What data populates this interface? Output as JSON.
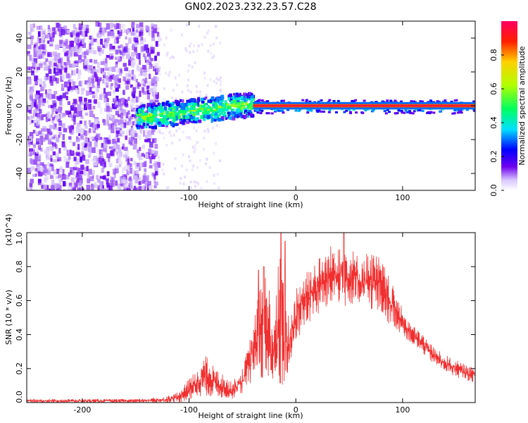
{
  "title": "GN02.2023.232.23.57.C28",
  "chart_data": [
    {
      "type": "heatmap",
      "xlabel": "Height of straight line (km)",
      "ylabel": "Frequency (Hz)",
      "xlim": [
        -252,
        168
      ],
      "ylim": [
        -50,
        50
      ],
      "xticks": [
        -200,
        -100,
        0,
        100
      ],
      "xtick_labels": [
        "-200",
        "-100",
        "0",
        "100"
      ],
      "yticks": [
        -40,
        -20,
        0,
        20,
        40
      ],
      "ytick_labels": [
        "-40",
        "-20",
        "0",
        "20",
        "40"
      ],
      "colorbar": {
        "label": "Normalized spectral amplitude",
        "range": [
          0.0,
          1.0
        ],
        "ticks": [
          0.0,
          0.2,
          0.4,
          0.6,
          0.8
        ],
        "tick_labels": [
          "0.0",
          "0.2",
          "0.4",
          "0.6",
          "0.8"
        ]
      },
      "regions": [
        {
          "x": [
            -252,
            -130
          ],
          "freq": [
            -50,
            50
          ],
          "amplitude": 0.08,
          "pattern": "broadband noise"
        },
        {
          "x": [
            -150,
            -40
          ],
          "freq": [
            -12,
            6
          ],
          "amplitude": 0.45,
          "pattern": "scattered band"
        },
        {
          "x": [
            -40,
            168
          ],
          "freq": [
            -3,
            3
          ],
          "amplitude": 0.95,
          "pattern": "narrow line at 0 Hz"
        }
      ]
    },
    {
      "type": "line",
      "xlabel": "Height of straight line (km)",
      "ylabel": "SNR (10 * v/v)",
      "yscale_label": "(x10^4)",
      "xlim": [
        -252,
        168
      ],
      "ylim": [
        0.0,
        1.0
      ],
      "xticks": [
        -200,
        -100,
        0,
        100
      ],
      "xtick_labels": [
        "-200",
        "-100",
        "0",
        "100"
      ],
      "yticks": [
        0.0,
        0.2,
        0.4,
        0.6,
        0.8,
        1.0
      ],
      "ytick_labels": [
        "0.0",
        "0.2",
        "0.4",
        "0.6",
        "0.8",
        "1.0"
      ],
      "series": [
        {
          "color": "#f03030",
          "envelope": {
            "x": [
              -252,
              -200,
              -150,
              -125,
              -110,
              -95,
              -85,
              -75,
              -60,
              -50,
              -42,
              -36,
              -30,
              -25,
              -20,
              -15,
              -10,
              -5,
              0,
              10,
              20,
              30,
              40,
              50,
              60,
              70,
              80,
              90,
              100,
              110,
              120,
              130,
              140,
              150,
              160,
              168
            ],
            "low": [
              0.0,
              0.0,
              0.0,
              0.0,
              0.0,
              0.02,
              0.04,
              0.03,
              0.02,
              0.05,
              0.1,
              0.2,
              0.1,
              0.05,
              0.05,
              0.05,
              0.1,
              0.2,
              0.35,
              0.45,
              0.5,
              0.55,
              0.58,
              0.55,
              0.55,
              0.55,
              0.5,
              0.45,
              0.4,
              0.33,
              0.28,
              0.22,
              0.18,
              0.15,
              0.13,
              0.12
            ],
            "high": [
              0.02,
              0.02,
              0.02,
              0.03,
              0.06,
              0.18,
              0.28,
              0.2,
              0.12,
              0.2,
              0.4,
              0.6,
              0.8,
              0.7,
              0.5,
              0.95,
              0.6,
              0.5,
              0.7,
              0.8,
              0.85,
              0.9,
              1.0,
              0.92,
              0.86,
              0.9,
              0.85,
              0.7,
              0.55,
              0.45,
              0.4,
              0.32,
              0.28,
              0.25,
              0.22,
              0.2
            ],
            "spikes": [
              {
                "x": -35,
                "y": 0.78
              },
              {
                "x": -30,
                "y": 0.8
              },
              {
                "x": -14,
                "y": 1.02
              },
              {
                "x": -10,
                "y": 0.95
              },
              {
                "x": 45,
                "y": 1.0
              }
            ]
          }
        }
      ]
    }
  ]
}
